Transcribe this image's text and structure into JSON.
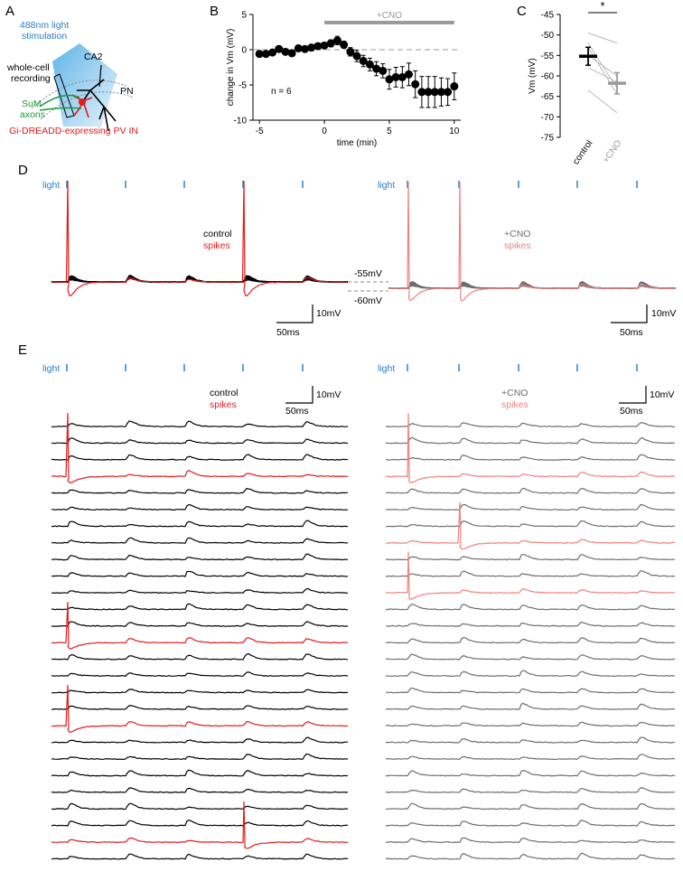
{
  "panel_labels": {
    "a": "A",
    "b": "B",
    "c": "C",
    "d": "D",
    "e": "E"
  },
  "colors": {
    "control": "#000000",
    "control_spike": "#e41a1c",
    "cno": "#6e6e6e",
    "cno_spike": "#f08080",
    "light": "#2b7fc3",
    "suM": "#1a9a3a",
    "pv": "#e41a1c",
    "cno_bar": "#9a9a9a",
    "cone": "#9ecfee"
  },
  "panelA": {
    "stim_line1": "488nm light",
    "stim_line2": "stimulation",
    "rec_line1": "whole-cell",
    "rec_line2": "recording",
    "region": "CA2",
    "pn": "PN",
    "suM_line1": "SuM",
    "suM_line2": "axons",
    "pv_label": "Gi-DREADD-expressing PV IN"
  },
  "chart_data": [
    {
      "id": "B",
      "type": "scatter",
      "xlabel": "time (min)",
      "ylabel": "change in Vm (mV)",
      "xlim": [
        -5.5,
        10.5
      ],
      "ylim": [
        -10,
        5
      ],
      "xticks": [
        -5,
        0,
        5,
        10
      ],
      "yticks": [
        5,
        0,
        -5,
        -10
      ],
      "annotation": "n = 6",
      "bar_label": "+CNO",
      "bar_range": [
        0,
        10
      ],
      "points": [
        {
          "x": -5.0,
          "y": -0.6,
          "err": 0.3
        },
        {
          "x": -4.5,
          "y": -0.6,
          "err": 0.3
        },
        {
          "x": -4.0,
          "y": -0.4,
          "err": 0.3
        },
        {
          "x": -3.5,
          "y": 0.1,
          "err": 0.3
        },
        {
          "x": -3.0,
          "y": -0.3,
          "err": 0.3
        },
        {
          "x": -2.5,
          "y": -0.5,
          "err": 0.3
        },
        {
          "x": -2.0,
          "y": 0.2,
          "err": 0.3
        },
        {
          "x": -1.5,
          "y": 0.1,
          "err": 0.3
        },
        {
          "x": -1.0,
          "y": 0.3,
          "err": 0.3
        },
        {
          "x": -0.5,
          "y": 0.5,
          "err": 0.4
        },
        {
          "x": 0.0,
          "y": 0.6,
          "err": 0.4
        },
        {
          "x": 0.5,
          "y": 0.9,
          "err": 0.5
        },
        {
          "x": 1.0,
          "y": 1.3,
          "err": 0.6
        },
        {
          "x": 1.5,
          "y": 0.7,
          "err": 0.5
        },
        {
          "x": 2.0,
          "y": -0.3,
          "err": 0.6
        },
        {
          "x": 2.5,
          "y": -0.9,
          "err": 0.8
        },
        {
          "x": 3.0,
          "y": -1.6,
          "err": 0.8
        },
        {
          "x": 3.5,
          "y": -2.1,
          "err": 0.9
        },
        {
          "x": 4.0,
          "y": -2.7,
          "err": 1.0
        },
        {
          "x": 4.5,
          "y": -3.0,
          "err": 1.0
        },
        {
          "x": 5.0,
          "y": -4.2,
          "err": 1.4
        },
        {
          "x": 5.5,
          "y": -3.9,
          "err": 1.4
        },
        {
          "x": 6.0,
          "y": -3.9,
          "err": 1.5
        },
        {
          "x": 6.5,
          "y": -3.5,
          "err": 1.6
        },
        {
          "x": 7.0,
          "y": -4.9,
          "err": 1.9
        },
        {
          "x": 7.5,
          "y": -6.0,
          "err": 2.2
        },
        {
          "x": 8.0,
          "y": -6.0,
          "err": 2.2
        },
        {
          "x": 8.5,
          "y": -6.0,
          "err": 2.2
        },
        {
          "x": 9.0,
          "y": -6.0,
          "err": 2.0
        },
        {
          "x": 9.5,
          "y": -6.0,
          "err": 1.9
        },
        {
          "x": 10.0,
          "y": -5.2,
          "err": 1.9
        }
      ]
    },
    {
      "id": "C",
      "type": "scatter",
      "ylabel": "Vm (mV)",
      "ylim": [
        -75,
        -45
      ],
      "yticks": [
        -45,
        -50,
        -55,
        -60,
        -65,
        -70,
        -75
      ],
      "categories": [
        "control",
        "+CNO"
      ],
      "significance": "*",
      "means": [
        {
          "category": "control",
          "mean": -55.2,
          "err": 2.2
        },
        {
          "category": "+CNO",
          "mean": -61.8,
          "err": 2.6
        }
      ],
      "pairs": [
        [
          -49.5,
          -52.0
        ],
        [
          -52.0,
          -63.0
        ],
        [
          -53.0,
          -64.5
        ],
        [
          -55.0,
          -60.0
        ],
        [
          -58.0,
          -61.5
        ],
        [
          -63.5,
          -69.0
        ]
      ]
    }
  ],
  "panelD": {
    "light_label": "light",
    "control_label": "control",
    "spikes_label": "spikes",
    "cno_label": "+CNO",
    "level_55": "-55mV",
    "level_60": "-60mV",
    "scale_v": "10mV",
    "scale_t": "50ms",
    "left_spike_times": [
      0,
      3
    ],
    "right_spike_times": [
      0,
      1
    ]
  },
  "panelE": {
    "light_label": "light",
    "control_label": "control",
    "spikes_label": "spikes",
    "cno_label": "+CNO",
    "scale_v": "10mV",
    "scale_t": "50ms",
    "left_spike_rows": [
      3,
      13,
      18,
      25
    ],
    "right_spike_rows": [
      3,
      7,
      10
    ],
    "num_rows": 27
  }
}
